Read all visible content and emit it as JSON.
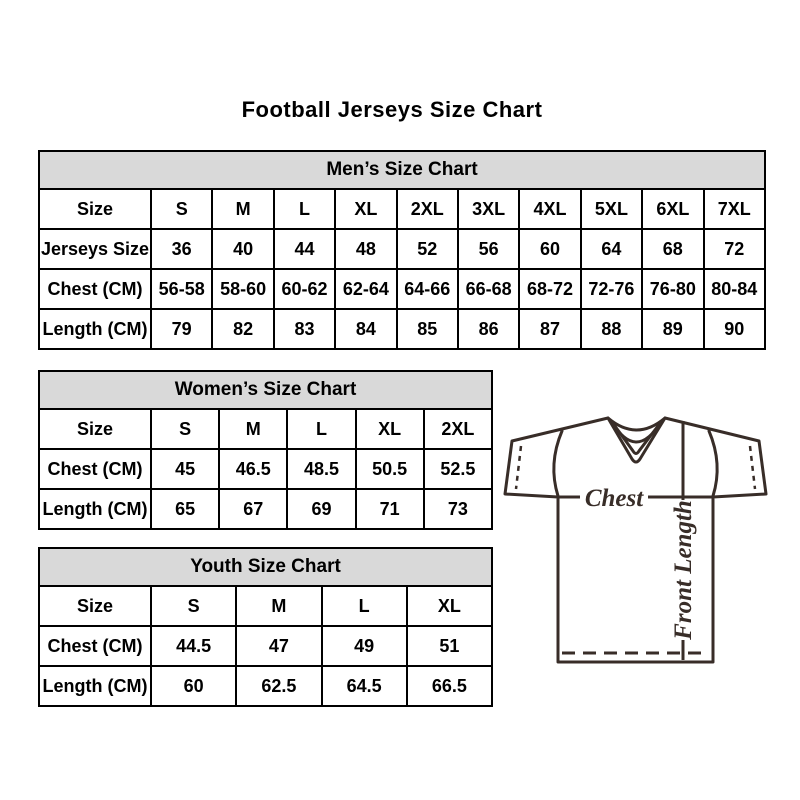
{
  "page": {
    "title": "Football Jerseys Size Chart"
  },
  "chart_data": [
    {
      "type": "table",
      "title": "Men’s Size Chart",
      "rows": [
        [
          "Size",
          "S",
          "M",
          "L",
          "XL",
          "2XL",
          "3XL",
          "4XL",
          "5XL",
          "6XL",
          "7XL"
        ],
        [
          "Jerseys Size",
          "36",
          "40",
          "44",
          "48",
          "52",
          "56",
          "60",
          "64",
          "68",
          "72"
        ],
        [
          "Chest (CM)",
          "56-58",
          "58-60",
          "60-62",
          "62-64",
          "64-66",
          "66-68",
          "68-72",
          "72-76",
          "76-80",
          "80-84"
        ],
        [
          "Length (CM)",
          "79",
          "82",
          "83",
          "84",
          "85",
          "86",
          "87",
          "88",
          "89",
          "90"
        ]
      ]
    },
    {
      "type": "table",
      "title": "Women’s Size Chart",
      "rows": [
        [
          "Size",
          "S",
          "M",
          "L",
          "XL",
          "2XL"
        ],
        [
          "Chest (CM)",
          "45",
          "46.5",
          "48.5",
          "50.5",
          "52.5"
        ],
        [
          "Length (CM)",
          "65",
          "67",
          "69",
          "71",
          "73"
        ]
      ]
    },
    {
      "type": "table",
      "title": "Youth Size Chart",
      "rows": [
        [
          "Size",
          "S",
          "M",
          "L",
          "XL"
        ],
        [
          "Chest (CM)",
          "44.5",
          "47",
          "49",
          "51"
        ],
        [
          "Length (CM)",
          "60",
          "62.5",
          "64.5",
          "66.5"
        ]
      ]
    }
  ],
  "diagram": {
    "chest_label": "Chest",
    "front_length_label": "Front Length"
  },
  "colors": {
    "table_header_bg": "#d9d9d9",
    "table_border": "#000000",
    "jersey_line": "#382d28"
  }
}
